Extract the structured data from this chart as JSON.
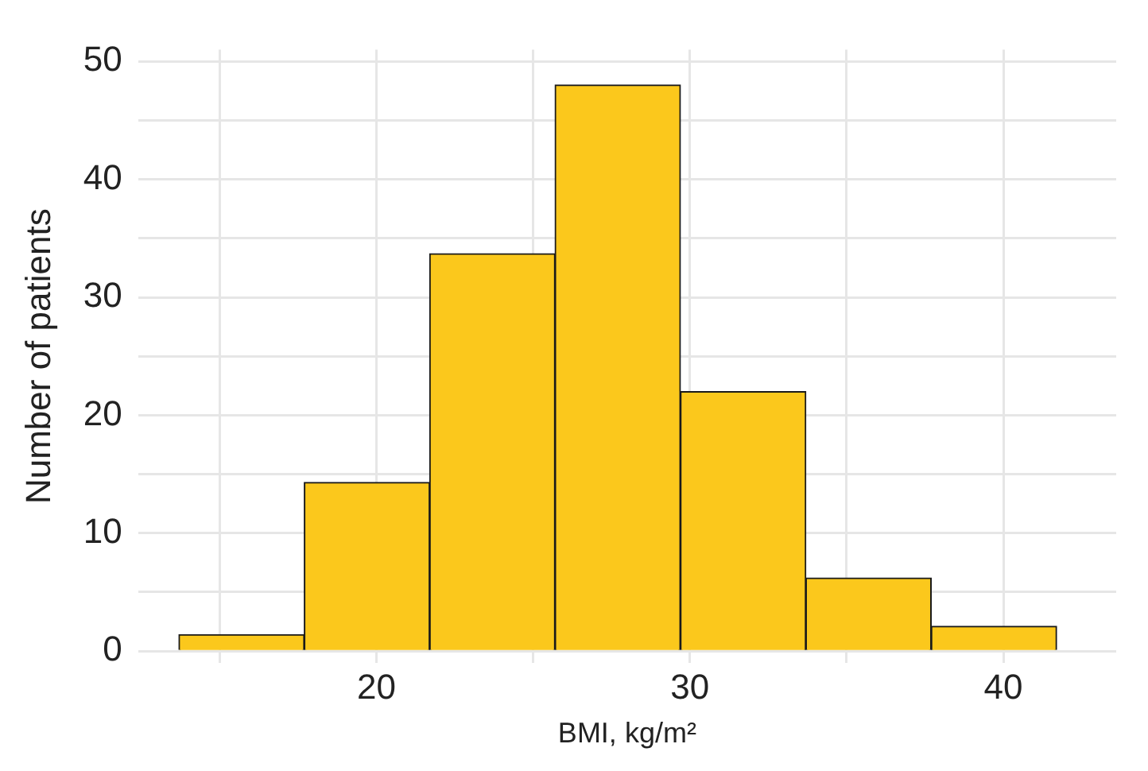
{
  "chart_data": {
    "type": "histogram",
    "xlabel": "BMI, kg/m²",
    "ylabel": "Number of patients",
    "bins": [
      13.7,
      17.7,
      21.7,
      25.7,
      29.7,
      33.7,
      37.7,
      41.7
    ],
    "values": [
      1.4,
      14.3,
      33.7,
      48,
      22,
      6.2,
      2.1
    ],
    "color": "#fbc81c",
    "xlim": [
      12.4,
      43.6
    ],
    "xticks": [
      {
        "value": 15,
        "label": null
      },
      20,
      {
        "value": 25,
        "label": null
      },
      30,
      {
        "value": 35,
        "label": null
      },
      40
    ],
    "ylim": [
      -1,
      51
    ],
    "yticks": [
      0,
      {
        "value": 5,
        "label": null
      },
      10,
      {
        "value": 15,
        "label": null
      },
      20,
      {
        "value": 25,
        "label": null
      },
      30,
      {
        "value": 35,
        "label": null
      },
      40,
      {
        "value": 45,
        "label": null
      },
      50
    ],
    "grid": true
  }
}
